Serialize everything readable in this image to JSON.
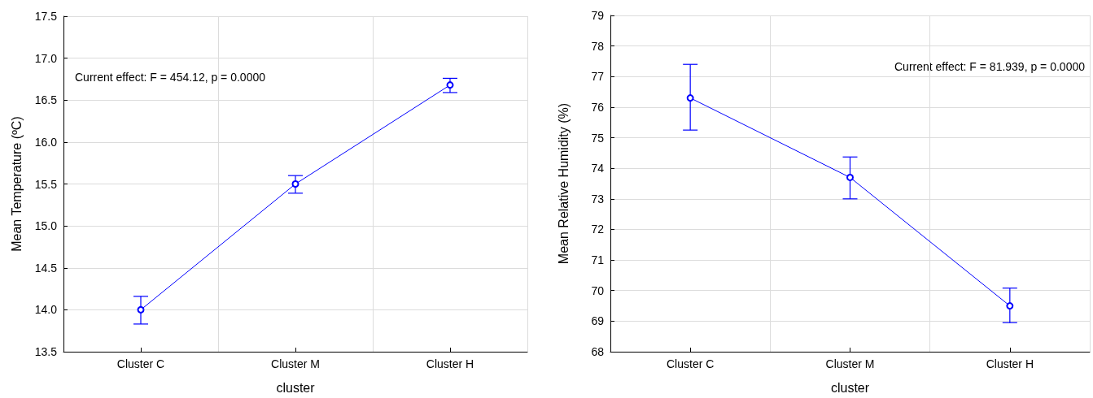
{
  "chart_data": [
    {
      "type": "line",
      "ylabel": "Mean Temperature (ºC)",
      "xlabel": "cluster",
      "categories": [
        "Cluster C",
        "Cluster M",
        "Cluster H"
      ],
      "series": [
        {
          "color": "#0000ff",
          "values": [
            14.0,
            15.5,
            16.68
          ],
          "errors": [
            [
              13.83,
              14.16
            ],
            [
              15.39,
              15.6
            ],
            [
              16.59,
              16.76
            ]
          ]
        }
      ],
      "ylim": [
        13.5,
        17.5
      ],
      "yticks": [
        13.5,
        {
          "value": 14,
          "label": "14.0"
        },
        14.5,
        {
          "value": 15,
          "label": "15.0"
        },
        15.5,
        {
          "value": 16,
          "label": "16.0"
        },
        16.5,
        {
          "value": 17,
          "label": "17.0"
        },
        17.5
      ],
      "grid": true,
      "marker": "circle",
      "line_style": "solid",
      "annotations": [
        "Current effect: F = 454.12, p = 0.0000"
      ]
    },
    {
      "type": "line",
      "ylabel": "Mean Relative Humidity (%)",
      "xlabel": "cluster",
      "categories": [
        "Cluster C",
        "Cluster M",
        "Cluster H"
      ],
      "series": [
        {
          "color": "#0000ff",
          "values": [
            76.3,
            73.7,
            69.5
          ],
          "errors": [
            [
              75.25,
              77.4
            ],
            [
              73.0,
              74.37
            ],
            [
              68.95,
              70.08
            ]
          ]
        }
      ],
      "ylim": [
        68,
        79
      ],
      "yticks": [
        68,
        69,
        70,
        71,
        72,
        73,
        74,
        75,
        76,
        77,
        78,
        79
      ],
      "grid": true,
      "marker": "circle",
      "line_style": "solid",
      "annotations": [
        "Current effect: F = 81.939, p = 0.0000"
      ]
    }
  ]
}
